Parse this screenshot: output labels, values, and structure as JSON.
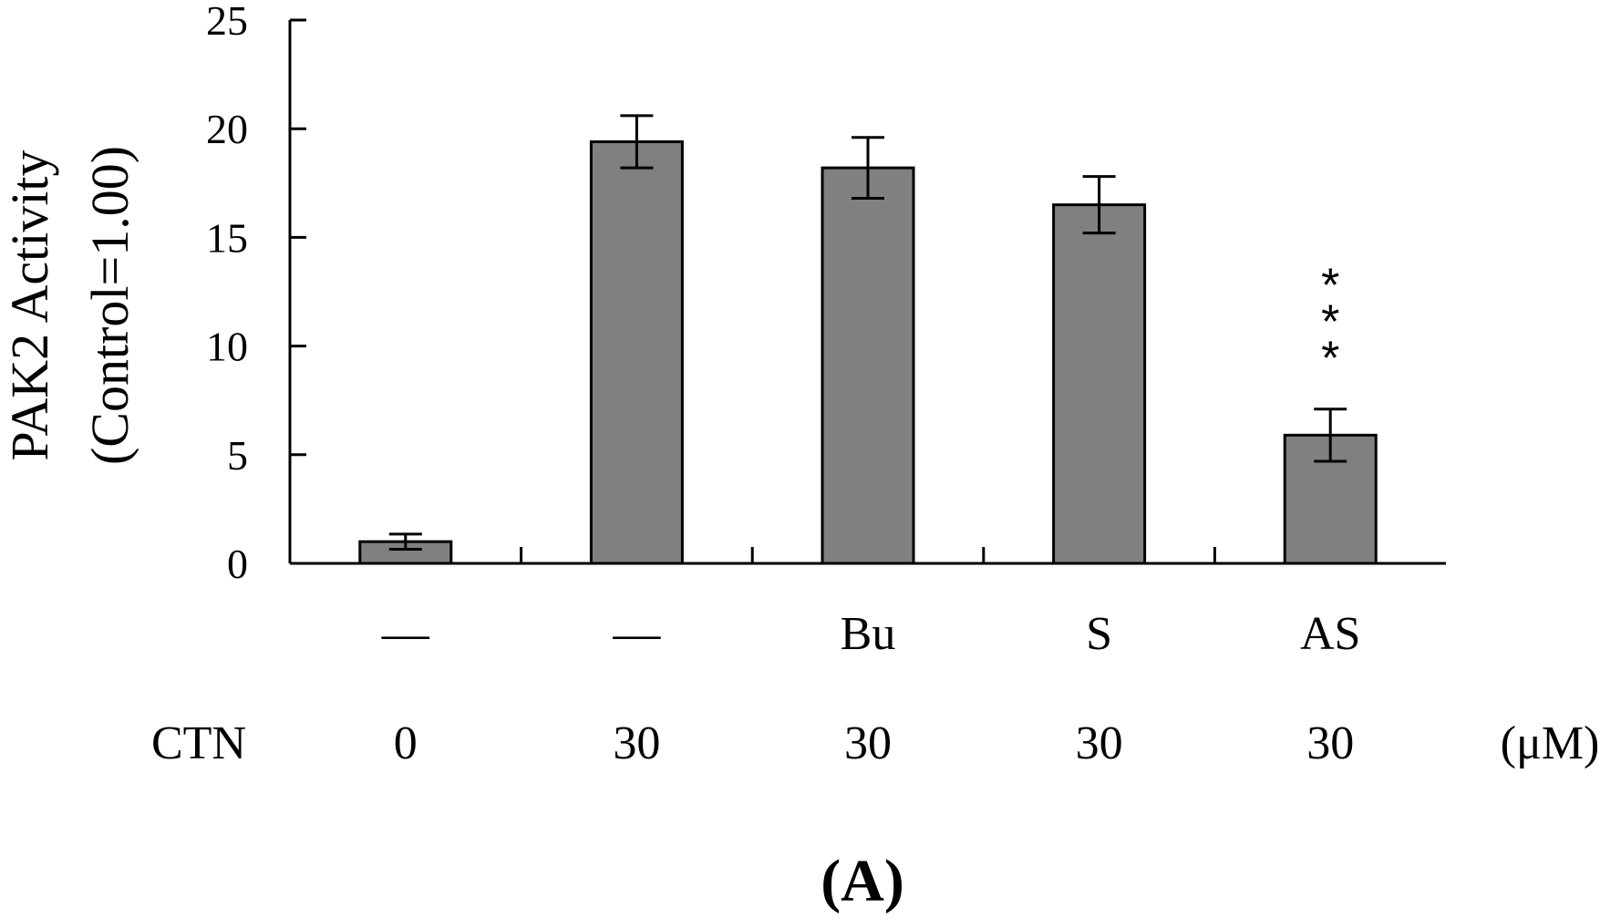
{
  "chart_data": {
    "type": "bar",
    "ylabel_line1": "PAK2 Activity",
    "ylabel_line2": "(Control=1.00)",
    "ylim": [
      0,
      25
    ],
    "yticks": [
      "0",
      "5",
      "10",
      "15",
      "20",
      "25"
    ],
    "categories": [
      "—",
      "—",
      "Bu",
      "S",
      "AS"
    ],
    "ctn_label": "CTN",
    "ctn_values": [
      "0",
      "30",
      "30",
      "30",
      "30"
    ],
    "unit_label": "(μM)",
    "values": [
      1.0,
      19.4,
      18.2,
      16.5,
      5.9
    ],
    "errors": [
      0.35,
      1.2,
      1.4,
      1.3,
      1.2
    ],
    "significance": [
      "",
      "",
      "",
      "",
      "***"
    ],
    "bar_color": "#808080",
    "panel_label": "(A)",
    "grid": false
  }
}
